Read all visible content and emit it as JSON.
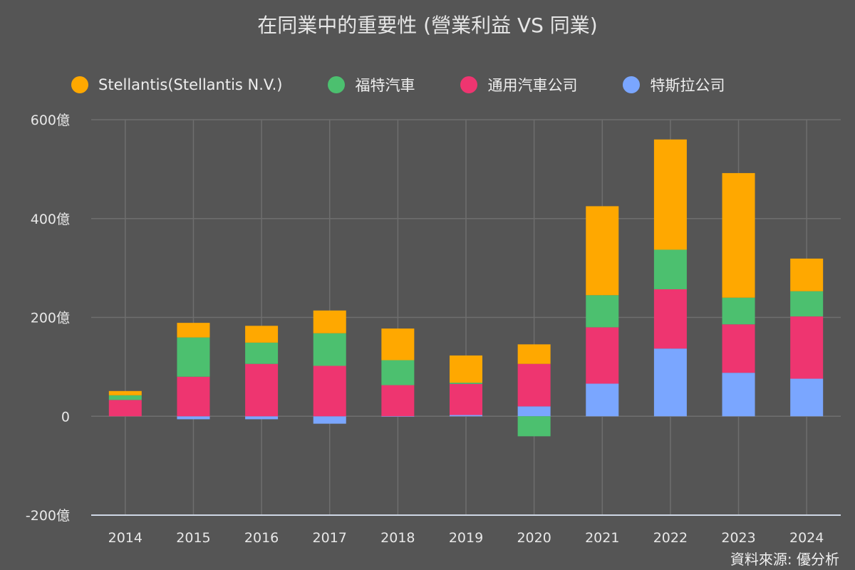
{
  "chart_data": {
    "type": "bar",
    "stacked": true,
    "title": "在同業中的重要性 (營業利益 VS 同業)",
    "xlabel": "",
    "ylabel": "",
    "ylim": [
      -200,
      600
    ],
    "yticks": [
      -200,
      0,
      200,
      400,
      600
    ],
    "ytick_labels": [
      "-200億",
      "0",
      "200億",
      "400億",
      "600億"
    ],
    "grid": true,
    "legend_position": "top",
    "categories": [
      "2014",
      "2015",
      "2016",
      "2017",
      "2018",
      "2019",
      "2020",
      "2021",
      "2022",
      "2023",
      "2024"
    ],
    "series": [
      {
        "name": "特斯拉公司",
        "color": "#7aa6ff",
        "values": [
          0,
          -6,
          -6,
          -15,
          -1,
          2.5,
          20,
          66,
          137,
          88,
          76
        ]
      },
      {
        "name": "通用汽車公司",
        "color": "#ee3570",
        "values": [
          33,
          80,
          106,
          102,
          63,
          63,
          86,
          114,
          120,
          98,
          126
        ]
      },
      {
        "name": "福特汽車",
        "color": "#4cc06f",
        "values": [
          9.5,
          79.5,
          43,
          66,
          50.5,
          2.5,
          -40.5,
          65,
          80,
          54,
          51
        ]
      },
      {
        "name": "Stellantis(Stellantis N.V.)",
        "color": "#ffa800",
        "values": [
          8.6,
          29.5,
          34,
          46,
          64,
          55,
          39.5,
          180,
          223,
          252,
          66
        ]
      }
    ],
    "source": "資料來源: 優分析"
  },
  "legend": [
    {
      "label": "Stellantis(Stellantis N.V.)",
      "color": "#ffa800"
    },
    {
      "label": "福特汽車",
      "color": "#4cc06f"
    },
    {
      "label": "通用汽車公司",
      "color": "#ee3570"
    },
    {
      "label": "特斯拉公司",
      "color": "#7aa6ff"
    }
  ]
}
